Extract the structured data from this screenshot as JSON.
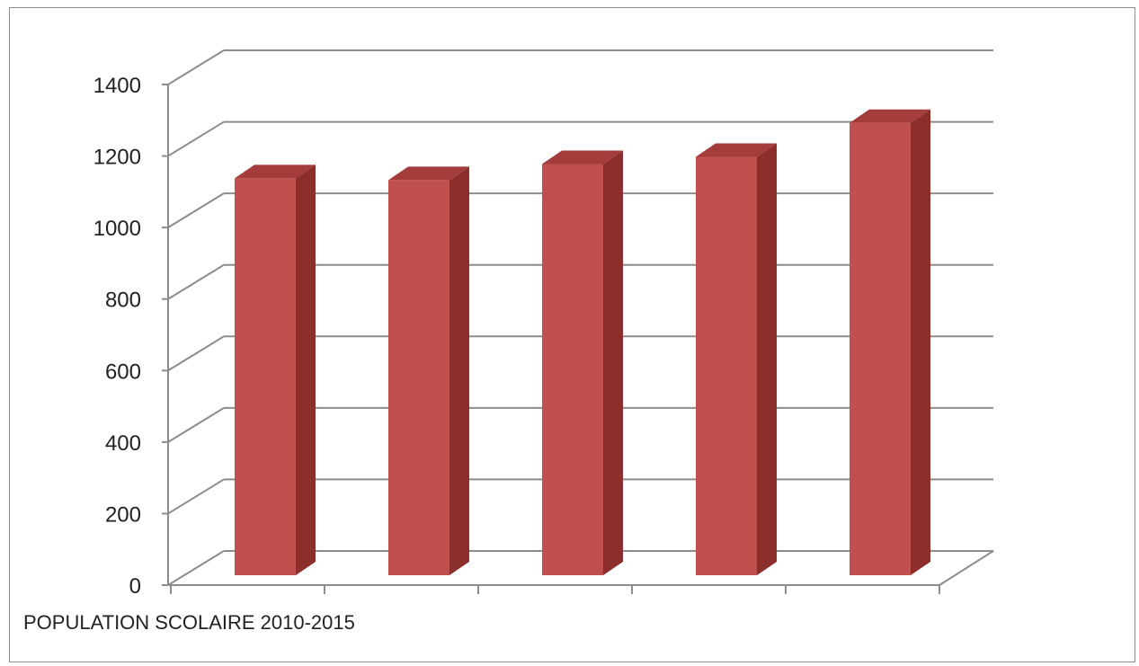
{
  "chart_data": {
    "type": "bar",
    "style": "3d-column",
    "title": "",
    "xlabel": "POPULATION SCOLAIRE 2010-2015",
    "ylabel": "",
    "categories": [
      "",
      "",
      "",
      "",
      ""
    ],
    "values": [
      1110,
      1105,
      1150,
      1170,
      1265
    ],
    "ylim": [
      0,
      1400
    ],
    "yticks": [
      "0",
      "200",
      "400",
      "600",
      "800",
      "1000",
      "1200",
      "1400"
    ],
    "grid": true,
    "legend": "none",
    "colors": {
      "bar_front": "#c0504d",
      "bar_side": "#8b2e2c",
      "bar_top": "#a33c3a",
      "grid": "#8c8c8c"
    }
  }
}
